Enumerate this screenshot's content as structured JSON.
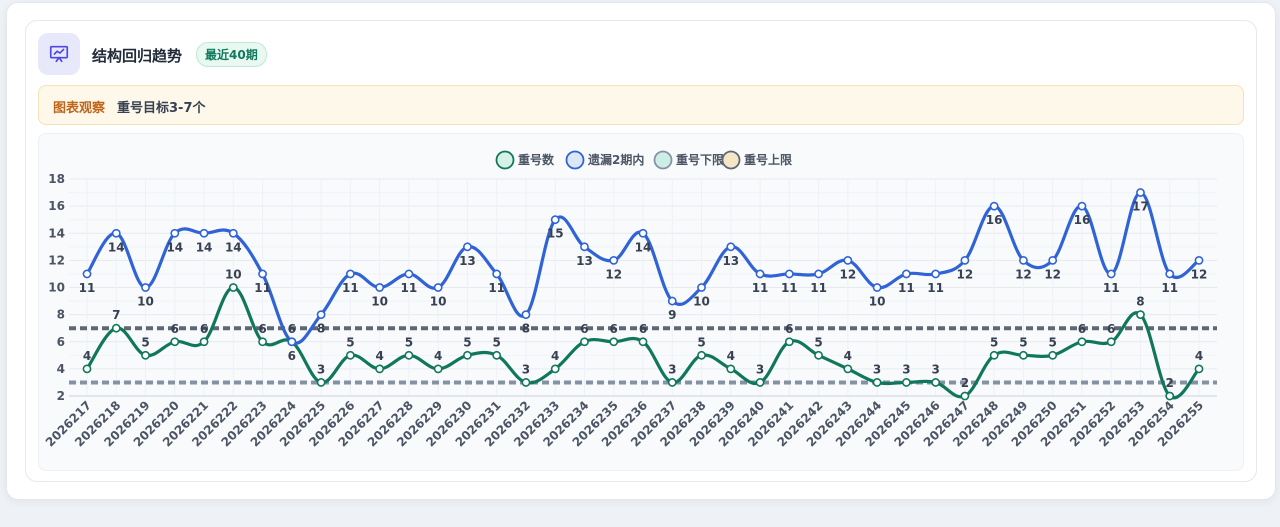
{
  "header": {
    "title": "结构回归趋势",
    "badge": "最近40期",
    "icon": "presentation-chart-icon"
  },
  "observation": {
    "label": "图表观察",
    "text": "重号目标3-7个"
  },
  "colors": {
    "repeat": "#11775a",
    "missing": "#2f63d6",
    "lower": "#8592a4",
    "upper": "#5f6674",
    "lower_legend_fill": "#cdeee4",
    "upper_legend_fill": "#f7e6c6",
    "icon_bg": "#e7e9fb",
    "icon_color": "#4f46e5"
  },
  "chart_data": {
    "type": "line",
    "legend_position": "top-center",
    "grid": true,
    "ylim": [
      2,
      18
    ],
    "yticks": [
      2,
      4,
      6,
      8,
      10,
      12,
      14,
      16,
      18
    ],
    "categories": [
      "2026217",
      "2026218",
      "2026219",
      "2026220",
      "2026221",
      "2026222",
      "2026223",
      "2026224",
      "2026225",
      "2026226",
      "2026227",
      "2026228",
      "2026229",
      "2026230",
      "2026231",
      "2026232",
      "2026233",
      "2026234",
      "2026235",
      "2026236",
      "2026237",
      "2026238",
      "2026239",
      "2026240",
      "2026241",
      "2026242",
      "2026243",
      "2026244",
      "2026245",
      "2026246",
      "2026247",
      "2026248",
      "2026249",
      "2026250",
      "2026251",
      "2026252",
      "2026253",
      "2026254",
      "2026255"
    ],
    "series": [
      {
        "name": "重号数",
        "values": [
          4,
          7,
          5,
          6,
          6,
          10,
          6,
          6,
          3,
          5,
          4,
          5,
          4,
          5,
          5,
          3,
          4,
          6,
          6,
          6,
          3,
          5,
          4,
          3,
          6,
          5,
          4,
          3,
          3,
          3,
          2,
          5,
          5,
          5,
          6,
          6,
          8,
          2,
          4
        ]
      },
      {
        "name": "遗漏2期内",
        "values": [
          11,
          14,
          10,
          14,
          14,
          14,
          11,
          6,
          8,
          11,
          10,
          11,
          10,
          13,
          11,
          8,
          15,
          13,
          12,
          14,
          9,
          10,
          13,
          11,
          11,
          11,
          12,
          10,
          11,
          11,
          12,
          16,
          12,
          12,
          16,
          11,
          17,
          11,
          12
        ]
      },
      {
        "name": "重号下限",
        "value": 3
      },
      {
        "name": "重号上限",
        "value": 7
      }
    ]
  }
}
